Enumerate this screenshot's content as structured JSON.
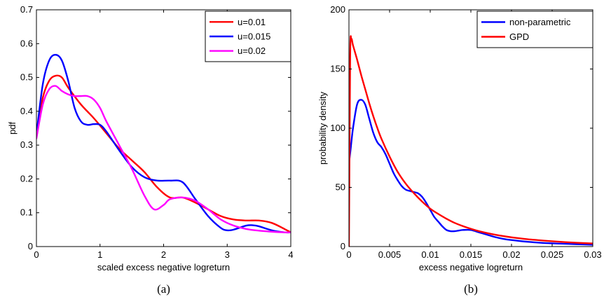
{
  "chart_data": [
    {
      "type": "line",
      "caption": "(a)",
      "xlabel": "scaled excess negative logreturn",
      "ylabel": "pdf",
      "xlim": [
        0,
        4
      ],
      "ylim": [
        0,
        0.7
      ],
      "xticks": [
        "0",
        "1",
        "2",
        "3",
        "4"
      ],
      "yticks": [
        "0",
        "0.1",
        "0.2",
        "0.3",
        "0.4",
        "0.5",
        "0.6",
        "0.7"
      ],
      "grid": false,
      "legend_position": "top-right",
      "series": [
        {
          "name": "u=0.01",
          "color": "#ff0000",
          "x": [
            0,
            0.1,
            0.2,
            0.3,
            0.4,
            0.5,
            0.7,
            0.9,
            1.1,
            1.3,
            1.5,
            1.7,
            1.9,
            2.1,
            2.3,
            2.5,
            2.7,
            2.9,
            3.1,
            3.3,
            3.5,
            3.7,
            3.9,
            4.0
          ],
          "y": [
            0.33,
            0.44,
            0.49,
            0.505,
            0.5,
            0.47,
            0.42,
            0.38,
            0.335,
            0.29,
            0.255,
            0.22,
            0.175,
            0.145,
            0.145,
            0.13,
            0.11,
            0.09,
            0.08,
            0.077,
            0.077,
            0.07,
            0.052,
            0.042
          ]
        },
        {
          "name": "u=0.015",
          "color": "#0000ff",
          "x": [
            0,
            0.1,
            0.2,
            0.3,
            0.4,
            0.5,
            0.6,
            0.7,
            0.8,
            0.9,
            1.0,
            1.1,
            1.3,
            1.5,
            1.7,
            1.9,
            2.1,
            2.3,
            2.5,
            2.7,
            2.9,
            3.0,
            3.1,
            3.3,
            3.4,
            3.5,
            3.7,
            3.9,
            4.0
          ],
          "y": [
            0.33,
            0.48,
            0.55,
            0.567,
            0.55,
            0.49,
            0.41,
            0.37,
            0.36,
            0.362,
            0.36,
            0.34,
            0.285,
            0.235,
            0.205,
            0.195,
            0.195,
            0.19,
            0.14,
            0.09,
            0.055,
            0.048,
            0.05,
            0.062,
            0.063,
            0.06,
            0.048,
            0.042,
            0.042
          ]
        },
        {
          "name": "u=0.02",
          "color": "#ff00ff",
          "x": [
            0,
            0.1,
            0.2,
            0.3,
            0.4,
            0.5,
            0.6,
            0.7,
            0.8,
            0.9,
            1.0,
            1.1,
            1.3,
            1.5,
            1.7,
            1.85,
            2.0,
            2.1,
            2.3,
            2.5,
            2.7,
            2.9,
            3.1,
            3.3,
            3.5,
            3.7,
            3.9,
            4.0
          ],
          "y": [
            0.32,
            0.42,
            0.465,
            0.475,
            0.46,
            0.45,
            0.445,
            0.445,
            0.445,
            0.435,
            0.41,
            0.37,
            0.3,
            0.23,
            0.15,
            0.11,
            0.123,
            0.14,
            0.145,
            0.135,
            0.11,
            0.08,
            0.062,
            0.052,
            0.047,
            0.044,
            0.042,
            0.042
          ]
        }
      ]
    },
    {
      "type": "line",
      "caption": "(b)",
      "xlabel": "excess negative logreturn",
      "ylabel": "probability density",
      "xlim": [
        0,
        0.03
      ],
      "ylim": [
        0,
        200
      ],
      "xticks": [
        "0",
        "0.005",
        "0.01",
        "0.015",
        "0.02",
        "0.025",
        "0.03"
      ],
      "yticks": [
        "0",
        "50",
        "100",
        "150",
        "200"
      ],
      "grid": false,
      "legend_position": "top-right",
      "series": [
        {
          "name": "non-parametric",
          "color": "#0000ff",
          "x": [
            0,
            0.0002,
            0.0005,
            0.001,
            0.0015,
            0.002,
            0.0025,
            0.003,
            0.0035,
            0.004,
            0.0045,
            0.005,
            0.0055,
            0.006,
            0.0065,
            0.007,
            0.0075,
            0.008,
            0.0085,
            0.009,
            0.0095,
            0.01,
            0.0105,
            0.011,
            0.0115,
            0.012,
            0.0125,
            0.013,
            0.0135,
            0.014,
            0.015,
            0.016,
            0.017,
            0.018,
            0.019,
            0.02,
            0.022,
            0.024,
            0.026,
            0.028,
            0.03
          ],
          "y": [
            70,
            82,
            100,
            120,
            124,
            120,
            108,
            96,
            88,
            84,
            78,
            70,
            62,
            56,
            51,
            48,
            47,
            46,
            45,
            42,
            37,
            31,
            25,
            21,
            17,
            14,
            13,
            13,
            13.5,
            14,
            14,
            12,
            10,
            8,
            6.5,
            5.5,
            4,
            3,
            2.5,
            2,
            1.5
          ]
        },
        {
          "name": "GPD",
          "color": "#ff0000",
          "x": [
            0,
            0.00015,
            0.0003,
            0.0005,
            0.001,
            0.0015,
            0.002,
            0.0025,
            0.003,
            0.0035,
            0.004,
            0.005,
            0.006,
            0.007,
            0.008,
            0.009,
            0.01,
            0.011,
            0.012,
            0.013,
            0.014,
            0.015,
            0.016,
            0.018,
            0.02,
            0.022,
            0.024,
            0.026,
            0.028,
            0.03
          ],
          "y": [
            0,
            160,
            175,
            170,
            158,
            145,
            133,
            121,
            110,
            100,
            91,
            76,
            63,
            53,
            45,
            38,
            32,
            27.5,
            23.5,
            20,
            17.3,
            15,
            13,
            10,
            7.8,
            6.2,
            5,
            4,
            3.2,
            2.6
          ]
        }
      ]
    }
  ]
}
